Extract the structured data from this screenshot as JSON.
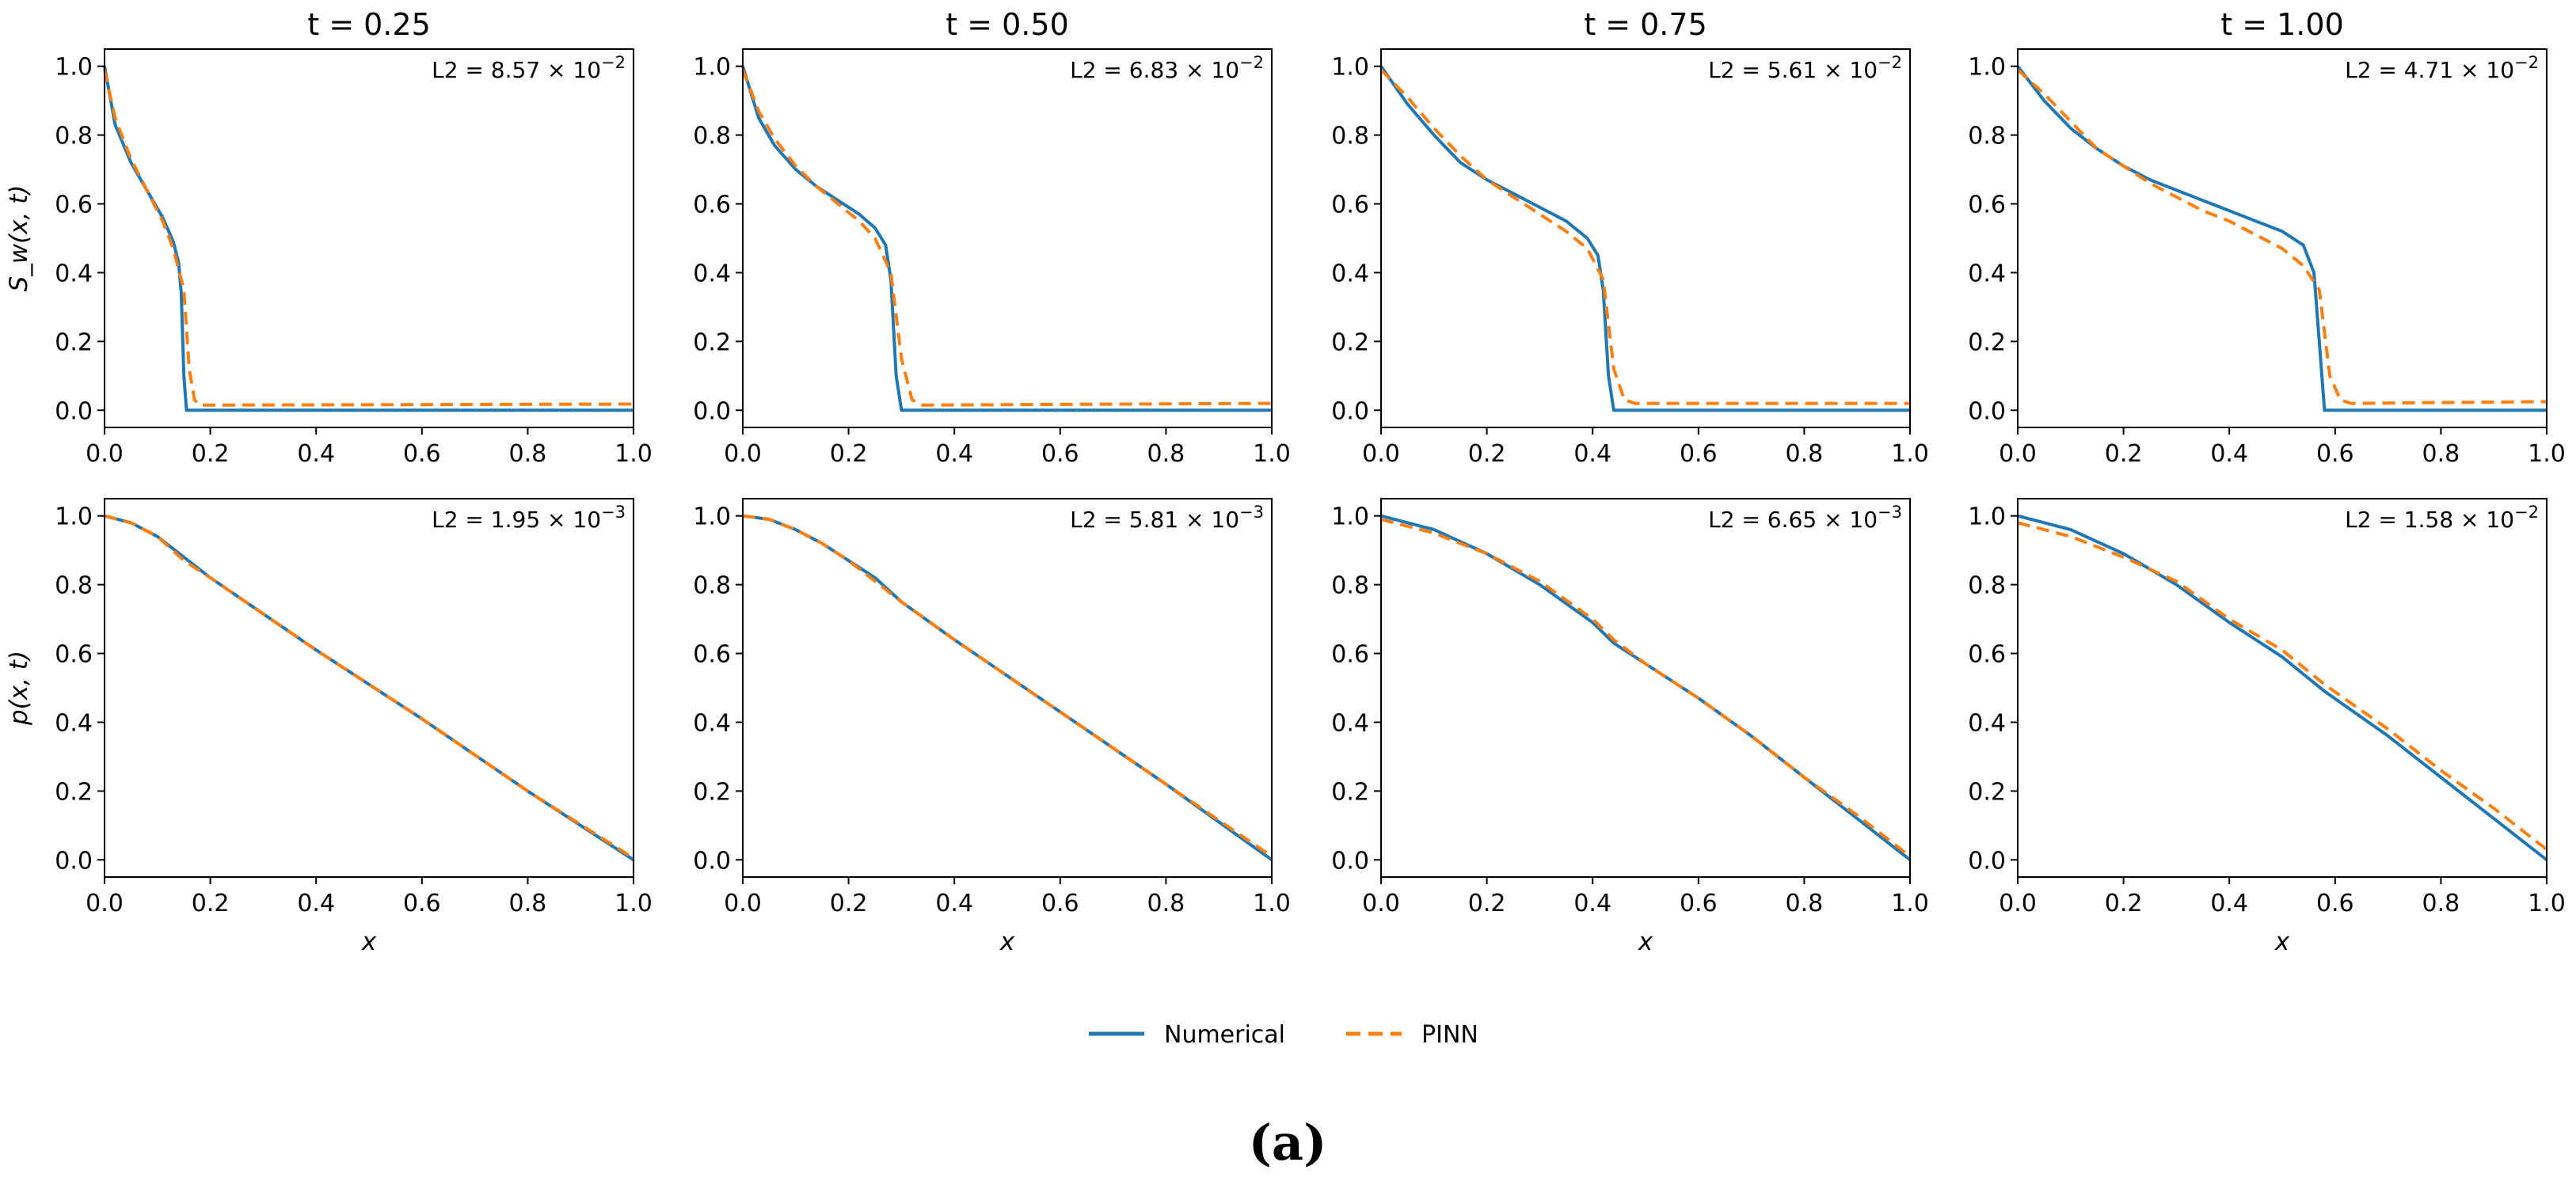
{
  "chart_data": {
    "type": "line",
    "layout": "grid 2x4",
    "caption": "(a)",
    "legend": {
      "entries": [
        {
          "name": "Numerical",
          "color": "#1f77b4",
          "style": "solid"
        },
        {
          "name": "PINN",
          "color": "#ff7f0e",
          "style": "dashed"
        }
      ],
      "placement": "bottom-center"
    },
    "x_ticks": [
      "0.0",
      "0.2",
      "0.4",
      "0.6",
      "0.8",
      "1.0"
    ],
    "y_ticks": [
      "0.0",
      "0.2",
      "0.4",
      "0.6",
      "0.8",
      "1.0"
    ],
    "xlim": [
      0,
      1
    ],
    "ylim": [
      -0.05,
      1.05
    ],
    "panels": [
      {
        "row": 0,
        "col": 0,
        "title": "t = 0.25",
        "ylabel": "S_w(x, t)",
        "xlabel": "",
        "l2": {
          "prefix": "L2 = ",
          "mantissa": "8.57",
          "exponent": "−2"
        },
        "series": [
          {
            "name": "Numerical",
            "x": [
              0,
              0.02,
              0.05,
              0.08,
              0.11,
              0.13,
              0.14,
              0.145,
              0.15,
              0.155,
              0.16,
              1.0
            ],
            "y": [
              1.0,
              0.83,
              0.72,
              0.64,
              0.56,
              0.49,
              0.43,
              0.34,
              0.1,
              0.0,
              0.0,
              0.0
            ]
          },
          {
            "name": "PINN",
            "x": [
              0,
              0.02,
              0.05,
              0.08,
              0.11,
              0.13,
              0.15,
              0.16,
              0.17,
              0.18,
              1.0
            ],
            "y": [
              0.99,
              0.85,
              0.73,
              0.64,
              0.55,
              0.47,
              0.35,
              0.12,
              0.03,
              0.015,
              0.018
            ]
          }
        ]
      },
      {
        "row": 0,
        "col": 1,
        "title": "t = 0.50",
        "ylabel": "",
        "xlabel": "",
        "l2": {
          "prefix": "L2 = ",
          "mantissa": "6.83",
          "exponent": "−2"
        },
        "series": [
          {
            "name": "Numerical",
            "x": [
              0,
              0.03,
              0.06,
              0.1,
              0.14,
              0.18,
              0.22,
              0.25,
              0.27,
              0.28,
              0.29,
              0.3,
              1.0
            ],
            "y": [
              1.0,
              0.85,
              0.77,
              0.7,
              0.65,
              0.61,
              0.57,
              0.53,
              0.48,
              0.38,
              0.1,
              0.0,
              0.0
            ]
          },
          {
            "name": "PINN",
            "x": [
              0,
              0.03,
              0.06,
              0.1,
              0.14,
              0.18,
              0.22,
              0.25,
              0.28,
              0.3,
              0.32,
              0.34,
              1.0
            ],
            "y": [
              0.99,
              0.87,
              0.79,
              0.71,
              0.65,
              0.6,
              0.55,
              0.5,
              0.4,
              0.15,
              0.03,
              0.015,
              0.02
            ]
          }
        ]
      },
      {
        "row": 0,
        "col": 2,
        "title": "t = 0.75",
        "ylabel": "",
        "xlabel": "",
        "l2": {
          "prefix": "L2 = ",
          "mantissa": "5.61",
          "exponent": "−2"
        },
        "series": [
          {
            "name": "Numerical",
            "x": [
              0,
              0.05,
              0.1,
              0.15,
              0.2,
              0.25,
              0.3,
              0.35,
              0.39,
              0.41,
              0.42,
              0.43,
              0.44,
              1.0
            ],
            "y": [
              1.0,
              0.89,
              0.8,
              0.72,
              0.67,
              0.63,
              0.59,
              0.55,
              0.5,
              0.45,
              0.35,
              0.1,
              0.0,
              0.0
            ]
          },
          {
            "name": "PINN",
            "x": [
              0,
              0.05,
              0.1,
              0.15,
              0.2,
              0.25,
              0.3,
              0.35,
              0.39,
              0.42,
              0.44,
              0.46,
              0.48,
              1.0
            ],
            "y": [
              0.99,
              0.91,
              0.82,
              0.74,
              0.67,
              0.62,
              0.57,
              0.52,
              0.47,
              0.38,
              0.12,
              0.03,
              0.02,
              0.02
            ]
          }
        ]
      },
      {
        "row": 0,
        "col": 3,
        "title": "t = 1.00",
        "ylabel": "",
        "xlabel": "",
        "l2": {
          "prefix": "L2 = ",
          "mantissa": "4.71",
          "exponent": "−2"
        },
        "series": [
          {
            "name": "Numerical",
            "x": [
              0,
              0.05,
              0.1,
              0.15,
              0.2,
              0.25,
              0.3,
              0.35,
              0.4,
              0.45,
              0.5,
              0.54,
              0.56,
              0.57,
              0.58,
              1.0
            ],
            "y": [
              1.0,
              0.9,
              0.82,
              0.76,
              0.71,
              0.67,
              0.64,
              0.61,
              0.58,
              0.55,
              0.52,
              0.48,
              0.4,
              0.2,
              0.0,
              0.0
            ]
          },
          {
            "name": "PINN",
            "x": [
              0,
              0.05,
              0.1,
              0.15,
              0.2,
              0.25,
              0.3,
              0.35,
              0.4,
              0.45,
              0.5,
              0.54,
              0.57,
              0.59,
              0.61,
              0.63,
              1.0
            ],
            "y": [
              0.99,
              0.92,
              0.84,
              0.76,
              0.71,
              0.66,
              0.62,
              0.58,
              0.55,
              0.51,
              0.47,
              0.42,
              0.35,
              0.1,
              0.03,
              0.02,
              0.025
            ]
          }
        ]
      },
      {
        "row": 1,
        "col": 0,
        "title": "",
        "ylabel": "p(x, t)",
        "xlabel": "x",
        "l2": {
          "prefix": "L2 = ",
          "mantissa": "1.95",
          "exponent": "−3"
        },
        "series": [
          {
            "name": "Numerical",
            "x": [
              0,
              0.05,
              0.1,
              0.15,
              0.2,
              0.4,
              0.6,
              0.8,
              1.0
            ],
            "y": [
              1.0,
              0.98,
              0.94,
              0.88,
              0.82,
              0.61,
              0.41,
              0.2,
              0.0
            ]
          },
          {
            "name": "PINN",
            "x": [
              0,
              0.05,
              0.1,
              0.15,
              0.2,
              0.4,
              0.6,
              0.8,
              1.0
            ],
            "y": [
              1.0,
              0.98,
              0.94,
              0.87,
              0.82,
              0.61,
              0.41,
              0.2,
              0.005
            ]
          }
        ]
      },
      {
        "row": 1,
        "col": 1,
        "title": "",
        "ylabel": "",
        "xlabel": "x",
        "l2": {
          "prefix": "L2 = ",
          "mantissa": "5.81",
          "exponent": "−3"
        },
        "series": [
          {
            "name": "Numerical",
            "x": [
              0,
              0.05,
              0.1,
              0.15,
              0.2,
              0.25,
              0.3,
              0.4,
              0.6,
              0.8,
              1.0
            ],
            "y": [
              1.0,
              0.99,
              0.96,
              0.92,
              0.87,
              0.82,
              0.75,
              0.64,
              0.43,
              0.22,
              0.0
            ]
          },
          {
            "name": "PINN",
            "x": [
              0,
              0.05,
              0.1,
              0.15,
              0.2,
              0.25,
              0.3,
              0.4,
              0.6,
              0.8,
              1.0
            ],
            "y": [
              1.0,
              0.99,
              0.96,
              0.92,
              0.87,
              0.81,
              0.75,
              0.64,
              0.43,
              0.22,
              0.01
            ]
          }
        ]
      },
      {
        "row": 1,
        "col": 2,
        "title": "",
        "ylabel": "",
        "xlabel": "x",
        "l2": {
          "prefix": "L2 = ",
          "mantissa": "6.65",
          "exponent": "−3"
        },
        "series": [
          {
            "name": "Numerical",
            "x": [
              0,
              0.1,
              0.2,
              0.3,
              0.4,
              0.44,
              0.5,
              0.6,
              0.7,
              0.8,
              0.9,
              1.0
            ],
            "y": [
              1.0,
              0.96,
              0.89,
              0.8,
              0.69,
              0.63,
              0.57,
              0.47,
              0.36,
              0.24,
              0.12,
              0.0
            ]
          },
          {
            "name": "PINN",
            "x": [
              0,
              0.1,
              0.2,
              0.3,
              0.4,
              0.44,
              0.5,
              0.6,
              0.7,
              0.8,
              0.9,
              1.0
            ],
            "y": [
              0.99,
              0.95,
              0.89,
              0.81,
              0.7,
              0.64,
              0.57,
              0.47,
              0.36,
              0.24,
              0.13,
              0.01
            ]
          }
        ]
      },
      {
        "row": 1,
        "col": 3,
        "title": "",
        "ylabel": "",
        "xlabel": "x",
        "l2": {
          "prefix": "L2 = ",
          "mantissa": "1.58",
          "exponent": "−2"
        },
        "series": [
          {
            "name": "Numerical",
            "x": [
              0,
              0.1,
              0.2,
              0.3,
              0.4,
              0.5,
              0.58,
              0.7,
              0.8,
              0.9,
              1.0
            ],
            "y": [
              1.0,
              0.96,
              0.89,
              0.8,
              0.69,
              0.59,
              0.49,
              0.36,
              0.24,
              0.12,
              0.0
            ]
          },
          {
            "name": "PINN",
            "x": [
              0,
              0.1,
              0.2,
              0.3,
              0.4,
              0.5,
              0.58,
              0.7,
              0.8,
              0.9,
              1.0
            ],
            "y": [
              0.98,
              0.94,
              0.88,
              0.81,
              0.7,
              0.61,
              0.51,
              0.38,
              0.26,
              0.15,
              0.03
            ]
          }
        ]
      }
    ]
  }
}
